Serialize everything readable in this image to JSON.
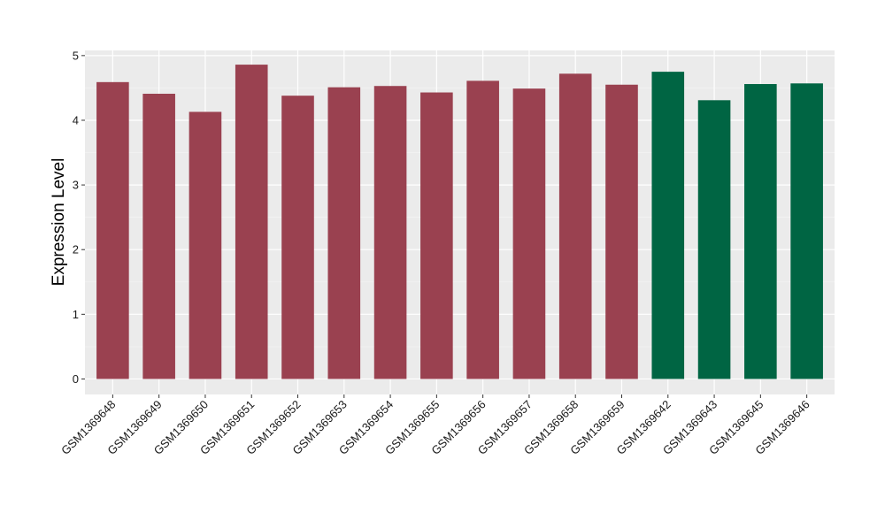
{
  "chart_data": {
    "type": "bar",
    "title": "",
    "xlabel": "",
    "ylabel": "Expression Level",
    "ylim": [
      -0.24,
      5.08
    ],
    "yticks": [
      0,
      1,
      2,
      3,
      4,
      5
    ],
    "grid": true,
    "background": "#ebebeb",
    "categories": [
      "GSM1369648",
      "GSM1369649",
      "GSM1369650",
      "GSM1369651",
      "GSM1369652",
      "GSM1369653",
      "GSM1369654",
      "GSM1369655",
      "GSM1369656",
      "GSM1369657",
      "GSM1369658",
      "GSM1369659",
      "GSM1369642",
      "GSM1369643",
      "GSM1369645",
      "GSM1369646"
    ],
    "values": [
      4.59,
      4.41,
      4.13,
      4.86,
      4.38,
      4.51,
      4.53,
      4.43,
      4.61,
      4.49,
      4.72,
      4.55,
      4.75,
      4.31,
      4.56,
      4.57
    ],
    "bar_colors": [
      "#9a4150",
      "#9a4150",
      "#9a4150",
      "#9a4150",
      "#9a4150",
      "#9a4150",
      "#9a4150",
      "#9a4150",
      "#9a4150",
      "#9a4150",
      "#9a4150",
      "#9a4150",
      "#006543",
      "#006543",
      "#006543",
      "#006543"
    ]
  }
}
